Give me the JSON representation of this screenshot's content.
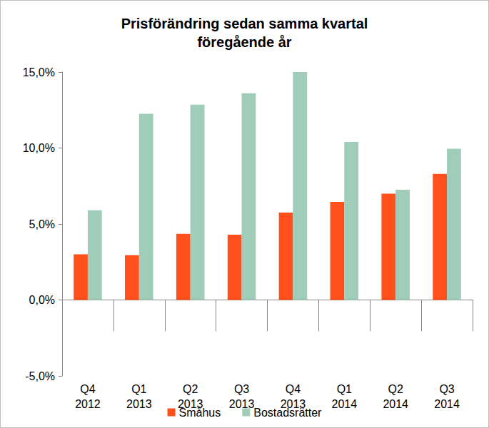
{
  "chart_data": {
    "type": "bar",
    "title": "Prisförändring sedan samma kvartal\nföregående år",
    "categories": [
      "Q4\n2012",
      "Q1\n2013",
      "Q2\n2013",
      "Q3\n2013",
      "Q4\n2013",
      "Q1\n2014",
      "Q2\n2014",
      "Q3\n2014"
    ],
    "series": [
      {
        "name": "Småhus",
        "color": "#ff4f1a",
        "values": [
          3.0,
          2.95,
          4.35,
          4.3,
          5.75,
          6.45,
          7.0,
          8.3
        ]
      },
      {
        "name": "Bostadsrätter",
        "color": "#9fcdb9",
        "values": [
          5.9,
          12.25,
          12.85,
          13.6,
          15.0,
          10.4,
          7.25,
          9.95
        ]
      }
    ],
    "ylim": [
      -5,
      15
    ],
    "yticks": [
      {
        "value": -5,
        "label": "-5,0%"
      },
      {
        "value": 0,
        "label": "0,0%"
      },
      {
        "value": 5,
        "label": "5,0%"
      },
      {
        "value": 10,
        "label": "10,0%"
      },
      {
        "value": 15,
        "label": "15,0%"
      }
    ],
    "grid": false,
    "legend": "bottom"
  }
}
